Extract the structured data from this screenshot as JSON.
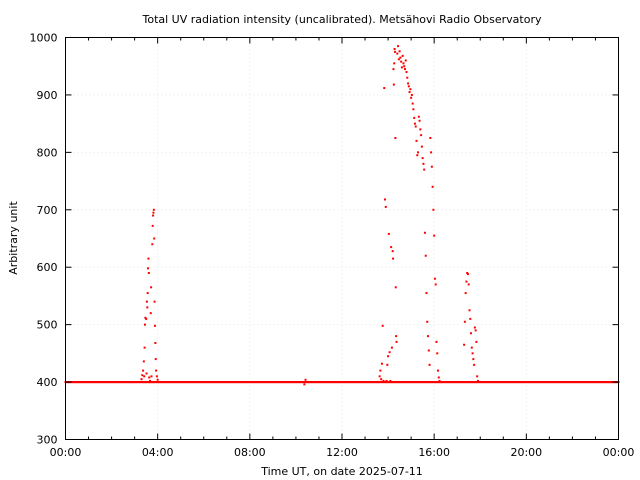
{
  "chart_data": {
    "type": "scatter",
    "title": "Total UV radiation intensity (uncalibrated). Metsähovi Radio Observatory",
    "xlabel": "Time UT, on date 2025-07-11",
    "ylabel": "Arbitrary unit",
    "xlim": [
      "00:00",
      "24:00"
    ],
    "ylim": [
      300,
      1000
    ],
    "x_ticks": [
      "00:00",
      "04:00",
      "08:00",
      "12:00",
      "16:00",
      "20:00",
      "00:00"
    ],
    "y_ticks": [
      300,
      400,
      500,
      600,
      700,
      800,
      900,
      1000
    ],
    "grid": true,
    "point_color": "#ff0000",
    "series": [
      {
        "baseline_value": 400,
        "baseline_ranges": [
          [
            "00:00",
            "24:00"
          ]
        ],
        "points": [
          [
            "03:18",
            405
          ],
          [
            "03:20",
            412
          ],
          [
            "03:22",
            420
          ],
          [
            "03:24",
            436
          ],
          [
            "03:25",
            410
          ],
          [
            "03:26",
            460
          ],
          [
            "03:27",
            500
          ],
          [
            "03:28",
            512
          ],
          [
            "03:30",
            510
          ],
          [
            "03:31",
            415
          ],
          [
            "03:32",
            540
          ],
          [
            "03:33",
            530
          ],
          [
            "03:34",
            555
          ],
          [
            "03:35",
            598
          ],
          [
            "03:36",
            615
          ],
          [
            "03:37",
            590
          ],
          [
            "03:38",
            408
          ],
          [
            "03:40",
            402
          ],
          [
            "03:42",
            520
          ],
          [
            "03:43",
            565
          ],
          [
            "03:44",
            410
          ],
          [
            "03:46",
            640
          ],
          [
            "03:47",
            672
          ],
          [
            "03:48",
            690
          ],
          [
            "03:49",
            695
          ],
          [
            "03:50",
            700
          ],
          [
            "03:51",
            650
          ],
          [
            "03:52",
            540
          ],
          [
            "03:53",
            498
          ],
          [
            "03:54",
            468
          ],
          [
            "03:55",
            440
          ],
          [
            "03:56",
            420
          ],
          [
            "03:58",
            410
          ],
          [
            "04:00",
            404
          ],
          [
            "10:22",
            396
          ],
          [
            "10:25",
            404
          ],
          [
            "13:38",
            410
          ],
          [
            "13:40",
            420
          ],
          [
            "13:42",
            405
          ],
          [
            "13:44",
            432
          ],
          [
            "13:46",
            498
          ],
          [
            "13:48",
            402
          ],
          [
            "13:50",
            912
          ],
          [
            "13:52",
            718
          ],
          [
            "13:54",
            705
          ],
          [
            "13:56",
            402
          ],
          [
            "13:58",
            430
          ],
          [
            "14:00",
            445
          ],
          [
            "14:02",
            658
          ],
          [
            "14:04",
            452
          ],
          [
            "14:06",
            402
          ],
          [
            "14:08",
            635
          ],
          [
            "14:10",
            460
          ],
          [
            "14:12",
            628
          ],
          [
            "14:13",
            615
          ],
          [
            "14:14",
            945
          ],
          [
            "14:15",
            918
          ],
          [
            "14:16",
            955
          ],
          [
            "14:17",
            980
          ],
          [
            "14:18",
            975
          ],
          [
            "14:19",
            825
          ],
          [
            "14:20",
            565
          ],
          [
            "14:21",
            480
          ],
          [
            "14:22",
            470
          ],
          [
            "14:24",
            972
          ],
          [
            "14:26",
            985
          ],
          [
            "14:28",
            962
          ],
          [
            "14:30",
            976
          ],
          [
            "14:32",
            965
          ],
          [
            "14:34",
            958
          ],
          [
            "14:36",
            948
          ],
          [
            "14:38",
            968
          ],
          [
            "14:40",
            955
          ],
          [
            "14:42",
            950
          ],
          [
            "14:44",
            945
          ],
          [
            "14:46",
            960
          ],
          [
            "14:48",
            940
          ],
          [
            "14:50",
            930
          ],
          [
            "14:52",
            920
          ],
          [
            "14:54",
            915
          ],
          [
            "14:56",
            905
          ],
          [
            "14:58",
            910
          ],
          [
            "15:00",
            895
          ],
          [
            "15:02",
            900
          ],
          [
            "15:04",
            885
          ],
          [
            "15:06",
            875
          ],
          [
            "15:08",
            860
          ],
          [
            "15:10",
            850
          ],
          [
            "15:12",
            845
          ],
          [
            "15:14",
            820
          ],
          [
            "15:16",
            795
          ],
          [
            "15:18",
            800
          ],
          [
            "15:20",
            862
          ],
          [
            "15:22",
            855
          ],
          [
            "15:24",
            840
          ],
          [
            "15:26",
            830
          ],
          [
            "15:28",
            810
          ],
          [
            "15:30",
            790
          ],
          [
            "15:32",
            780
          ],
          [
            "15:34",
            770
          ],
          [
            "15:36",
            660
          ],
          [
            "15:38",
            620
          ],
          [
            "15:40",
            555
          ],
          [
            "15:42",
            505
          ],
          [
            "15:44",
            480
          ],
          [
            "15:46",
            455
          ],
          [
            "15:48",
            430
          ],
          [
            "15:50",
            825
          ],
          [
            "15:52",
            800
          ],
          [
            "15:54",
            775
          ],
          [
            "15:56",
            740
          ],
          [
            "15:58",
            700
          ],
          [
            "16:00",
            655
          ],
          [
            "16:02",
            580
          ],
          [
            "16:04",
            570
          ],
          [
            "16:06",
            470
          ],
          [
            "16:08",
            450
          ],
          [
            "16:10",
            420
          ],
          [
            "16:12",
            408
          ],
          [
            "16:14",
            402
          ],
          [
            "17:18",
            465
          ],
          [
            "17:20",
            505
          ],
          [
            "17:22",
            555
          ],
          [
            "17:24",
            575
          ],
          [
            "17:26",
            590
          ],
          [
            "17:28",
            588
          ],
          [
            "17:30",
            570
          ],
          [
            "17:32",
            525
          ],
          [
            "17:34",
            510
          ],
          [
            "17:36",
            485
          ],
          [
            "17:38",
            460
          ],
          [
            "17:40",
            450
          ],
          [
            "17:42",
            440
          ],
          [
            "17:44",
            430
          ],
          [
            "17:46",
            495
          ],
          [
            "17:48",
            490
          ],
          [
            "17:50",
            470
          ],
          [
            "17:52",
            410
          ],
          [
            "17:54",
            402
          ]
        ]
      }
    ]
  }
}
